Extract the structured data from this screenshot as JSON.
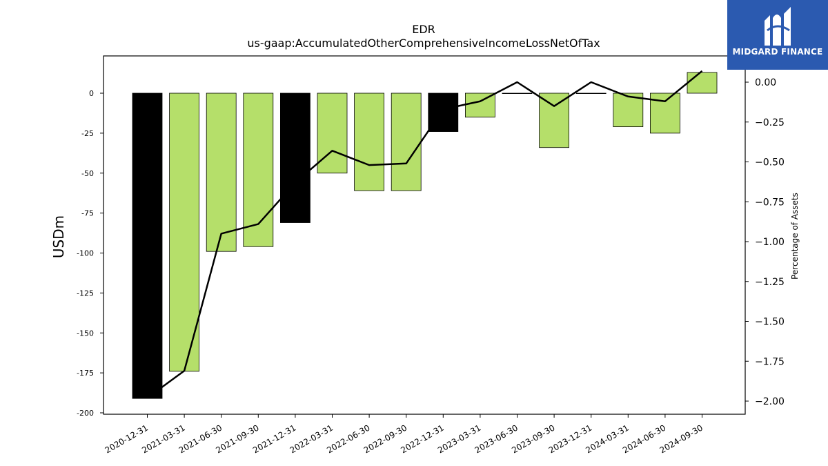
{
  "chart_data": {
    "type": "bar",
    "title": "EDR",
    "subtitle": "us-gaap:AccumulatedOtherComprehensiveIncomeLossNetOfTax",
    "ylabel": "USDm",
    "y2label": "Percentage of Assets",
    "categories": [
      "2020-12-31",
      "2021-03-31",
      "2021-06-30",
      "2021-09-30",
      "2021-12-31",
      "2022-03-31",
      "2022-06-30",
      "2022-09-30",
      "2022-12-31",
      "2023-03-31",
      "2023-06-30",
      "2023-09-30",
      "2023-12-31",
      "2024-03-31",
      "2024-06-30",
      "2024-09-30"
    ],
    "bar_values": [
      -191,
      -174,
      -99,
      -96,
      -81,
      -50,
      -61,
      -61,
      -24,
      -15,
      0,
      -34,
      0,
      -21,
      -25,
      13
    ],
    "bar_fill": [
      "#000000",
      "#b5df6a",
      "#b5df6a",
      "#b5df6a",
      "#000000",
      "#b5df6a",
      "#b5df6a",
      "#b5df6a",
      "#000000",
      "#b5df6a",
      "#b5df6a",
      "#b5df6a",
      "#000000",
      "#b5df6a",
      "#b5df6a",
      "#b5df6a"
    ],
    "line_values": [
      -1.98,
      -1.81,
      -0.95,
      -0.89,
      -0.63,
      -0.43,
      -0.52,
      -0.51,
      -0.17,
      -0.12,
      0.0,
      -0.15,
      0.0,
      -0.09,
      -0.12,
      0.07
    ],
    "ylim": [
      -200,
      20
    ],
    "y2lim": [
      -2.08,
      0.17
    ],
    "yticks": [
      0,
      -25,
      -50,
      -75,
      -100,
      -125,
      -150,
      -175,
      -200
    ],
    "y2ticks": [
      "0.00",
      "−0.25",
      "−0.50",
      "−0.75",
      "−1.00",
      "−1.25",
      "−1.50",
      "−1.75",
      "−2.00"
    ],
    "colors": {
      "bar_green": "#b5df6a",
      "bar_black": "#000000",
      "line": "#000000"
    }
  },
  "logo": {
    "text": "MIDGARD FINANCE",
    "background": "#2b5ab0"
  }
}
